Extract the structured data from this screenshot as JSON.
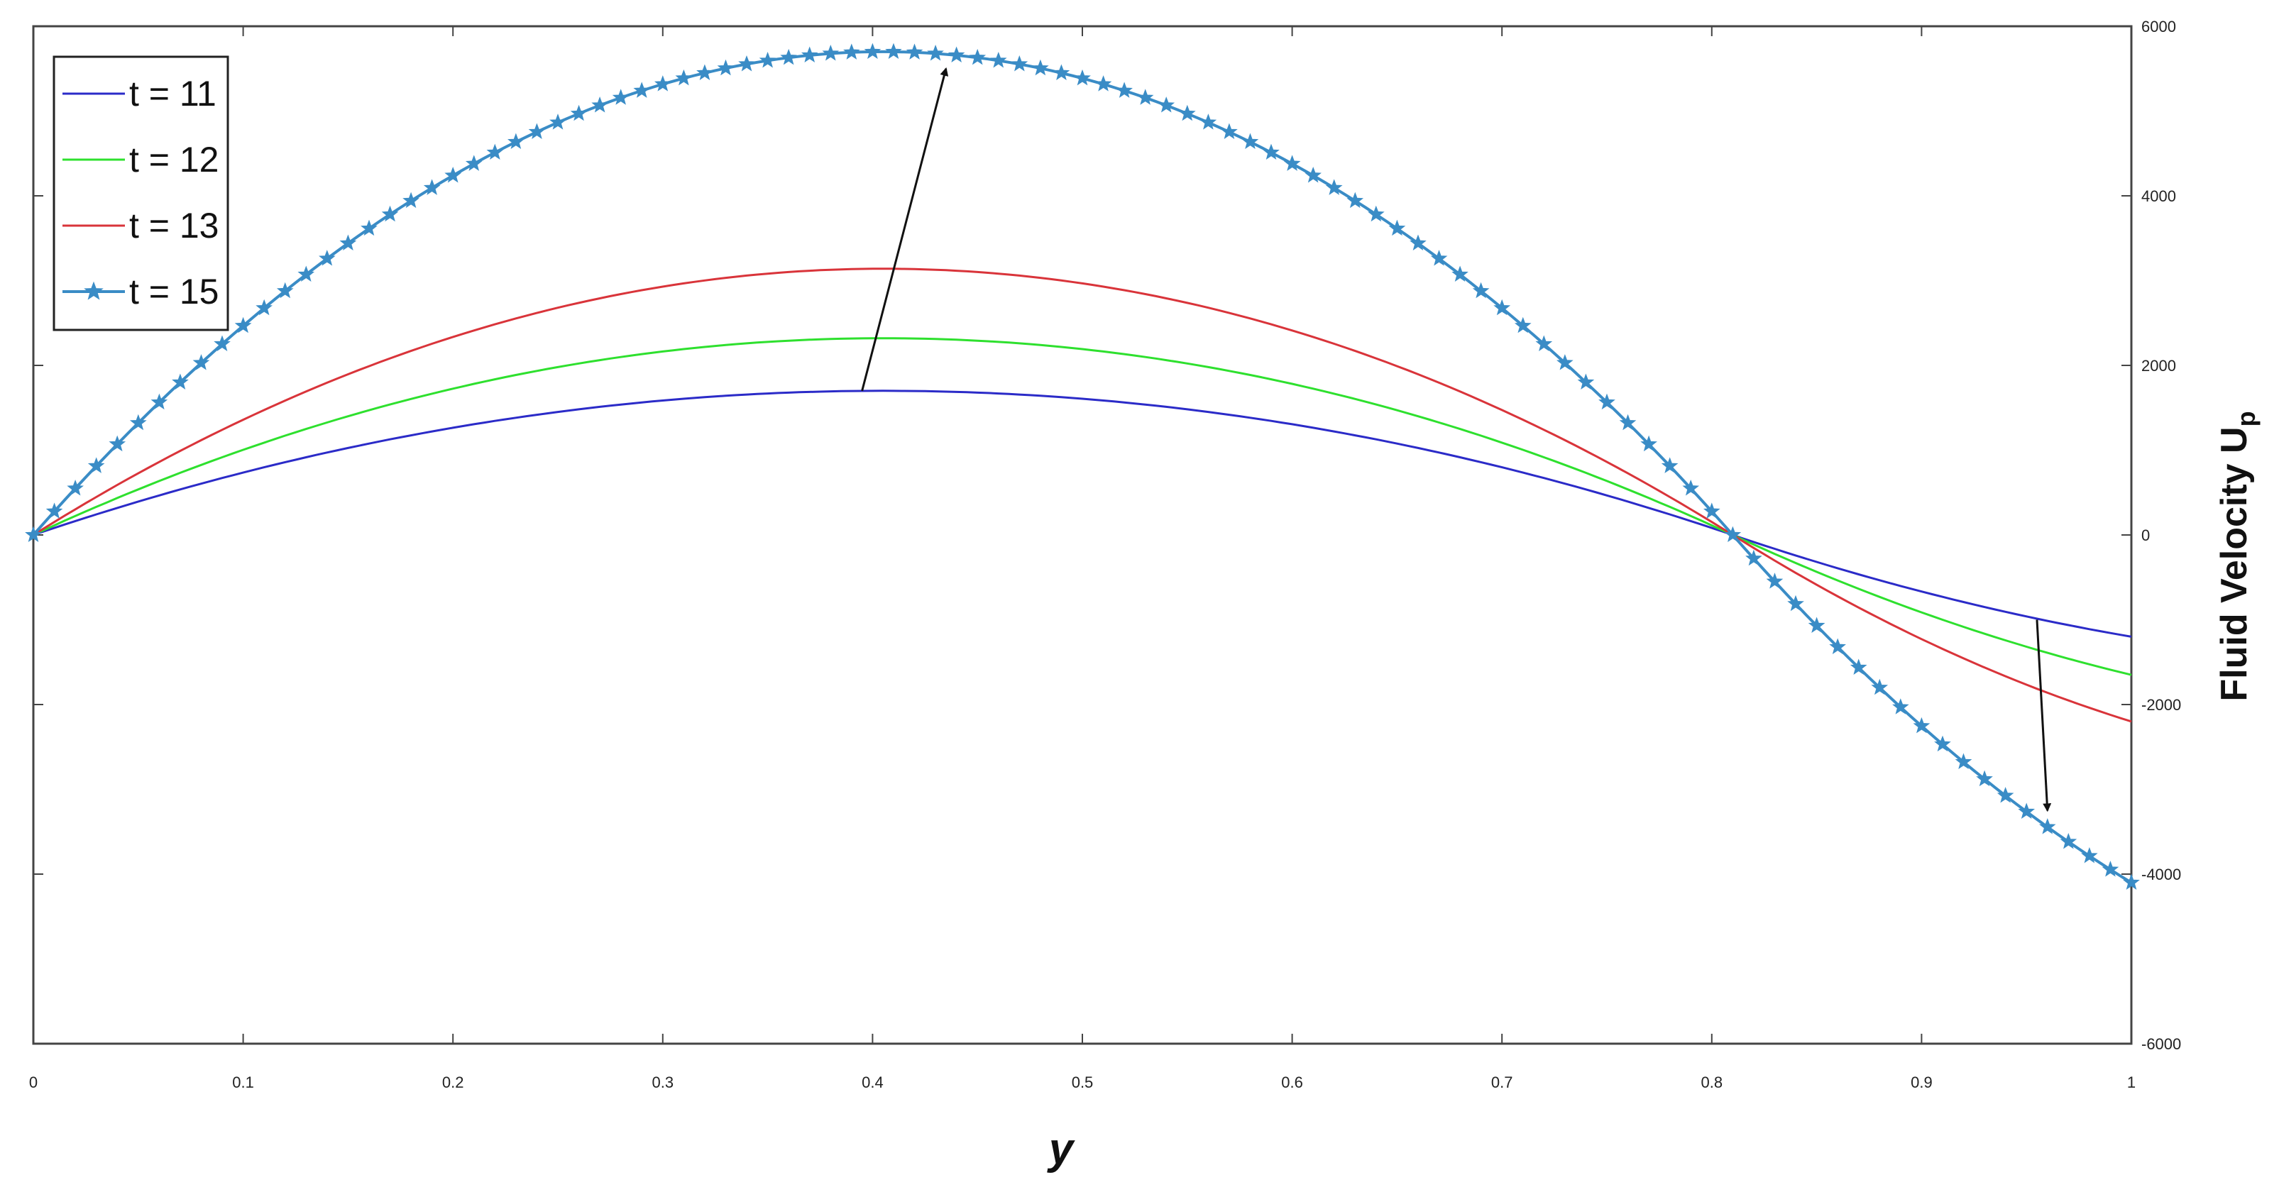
{
  "chart_data": {
    "type": "line",
    "title": "",
    "xlabel": "y",
    "ylabel": "Fluid Velocity U",
    "ylabel_subscript": "p",
    "xlim": [
      0,
      1
    ],
    "ylim": [
      -6000,
      6000
    ],
    "x_ticks": [
      "0",
      "0.1",
      "0.2",
      "0.3",
      "0.4",
      "0.5",
      "0.6",
      "0.7",
      "0.8",
      "0.9",
      "1"
    ],
    "y_ticks": [
      "-6000",
      "-4000",
      "-2000",
      "0",
      "2000",
      "4000",
      "6000"
    ],
    "y_axis_side": "right",
    "grid": false,
    "legend_position": "top-left",
    "series": [
      {
        "name": "t = 11",
        "color": "#2b2bc8",
        "marker": "none",
        "peak": 1700,
        "end": -1200
      },
      {
        "name": "t = 12",
        "color": "#2ee02e",
        "marker": "none",
        "peak": 2320,
        "end": -1650
      },
      {
        "name": "t = 13",
        "color": "#d9343a",
        "marker": "none",
        "peak": 3140,
        "end": -2200
      },
      {
        "name": "t = 15",
        "color": "#3a8cc6",
        "marker": "star",
        "peak": 5700,
        "end": -4100
      }
    ],
    "curve_model": {
      "zero_crossing_x": 0.81,
      "peak_x": 0.405
    },
    "annotations": [
      {
        "type": "arrow",
        "from": [
          0.395,
          1700
        ],
        "to": [
          0.435,
          5500
        ]
      },
      {
        "type": "arrow",
        "from": [
          0.955,
          -1000
        ],
        "to": [
          0.96,
          -3250
        ]
      }
    ]
  }
}
